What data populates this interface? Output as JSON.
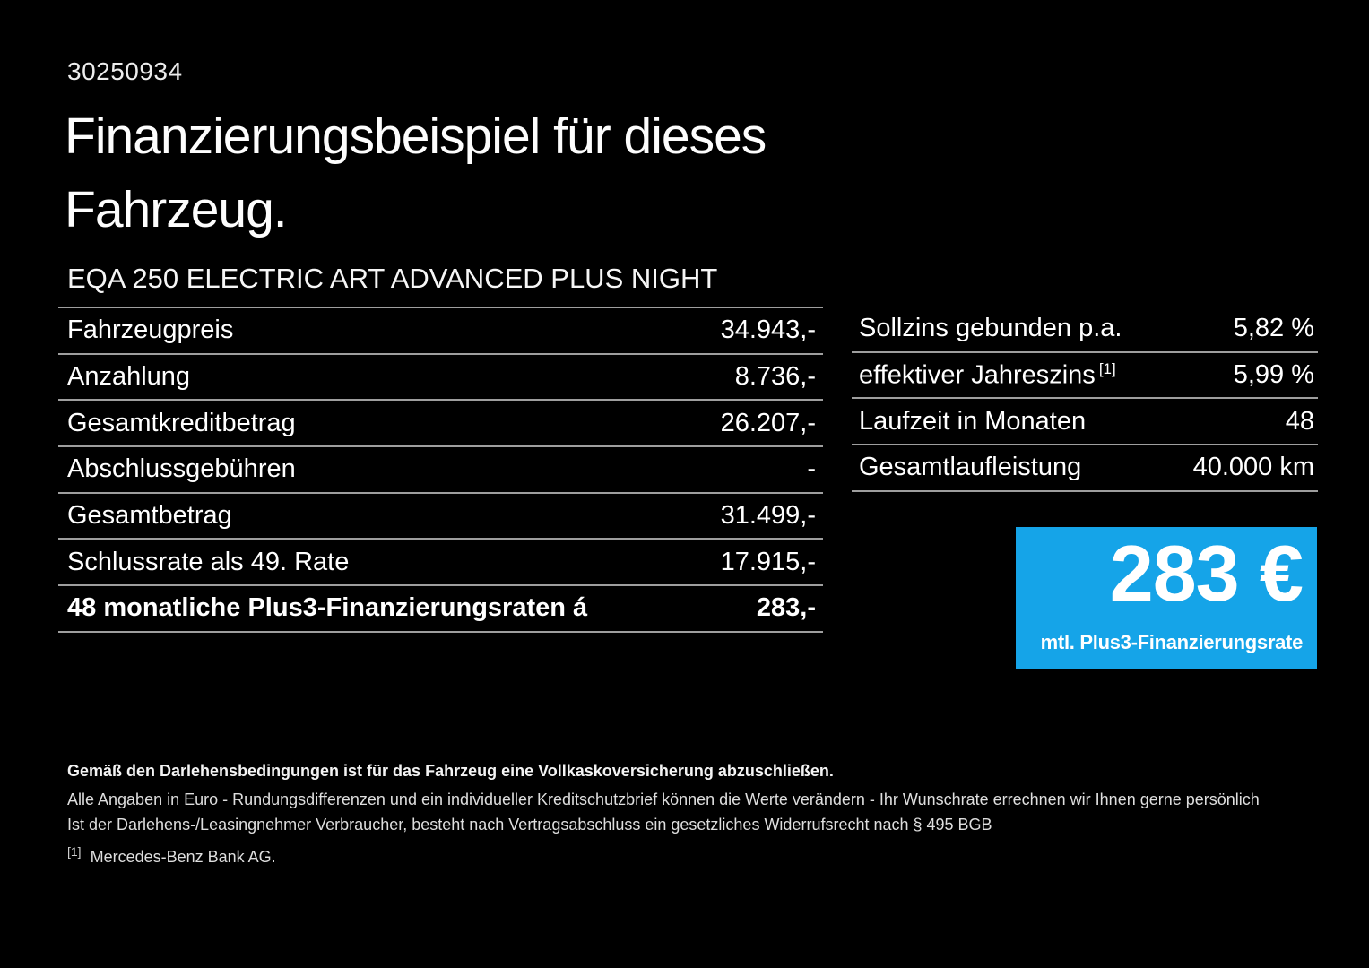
{
  "header": {
    "id_number": "30250934",
    "title_line1": "Finanzierungsbeispiel für dieses",
    "title_line2": "Fahrzeug.",
    "vehicle_name": "EQA 250 ELECTRIC ART ADVANCED PLUS NIGHT"
  },
  "left_table": {
    "rows": [
      {
        "label": "Fahrzeugpreis",
        "value": "34.943,-"
      },
      {
        "label": "Anzahlung",
        "value": "8.736,-"
      },
      {
        "label": "Gesamtkreditbetrag",
        "value": "26.207,-"
      },
      {
        "label": "Abschlussgebühren",
        "value": "-"
      },
      {
        "label": "Gesamtbetrag",
        "value": "31.499,-"
      },
      {
        "label": "Schlussrate als 49. Rate",
        "value": "17.915,-"
      },
      {
        "label": "48 monatliche Plus3-Finanzierungsraten á",
        "value": "283,-"
      }
    ]
  },
  "right_table": {
    "rows": [
      {
        "label": "Sollzins gebunden p.a.",
        "value": "5,82 %"
      },
      {
        "label": "effektiver Jahreszins",
        "footnote_marker": "[1]",
        "value": "5,99 %"
      },
      {
        "label": "Laufzeit in Monaten",
        "value": "48"
      },
      {
        "label": "Gesamtlaufleistung",
        "value": "40.000 km"
      }
    ]
  },
  "price_box": {
    "amount": "283 €",
    "caption": "mtl. Plus3-Finanzierungsrate",
    "background_color": "#15A4E8",
    "text_color": "#FFFFFF"
  },
  "footer": {
    "line1": "Gemäß den Darlehensbedingungen ist für das Fahrzeug eine Vollkaskoversicherung abzuschließen.",
    "line2": "Alle Angaben in Euro - Rundungsdifferenzen und ein individueller Kreditschutzbrief können die Werte verändern - Ihr Wunschrate errechnen wir Ihnen gerne persönlich",
    "line3": "Ist der Darlehens-/Leasingnehmer Verbraucher, besteht nach Vertragsabschluss ein gesetzliches Widerrufsrecht nach § 495 BGB",
    "footnote_marker": "[1]",
    "footnote_text": "Mercedes-Benz Bank AG."
  },
  "colors": {
    "background": "#000000",
    "text": "#FFFFFF",
    "divider": "rgba(255,255,255,0.62)",
    "accent_blue": "#15A4E8"
  }
}
